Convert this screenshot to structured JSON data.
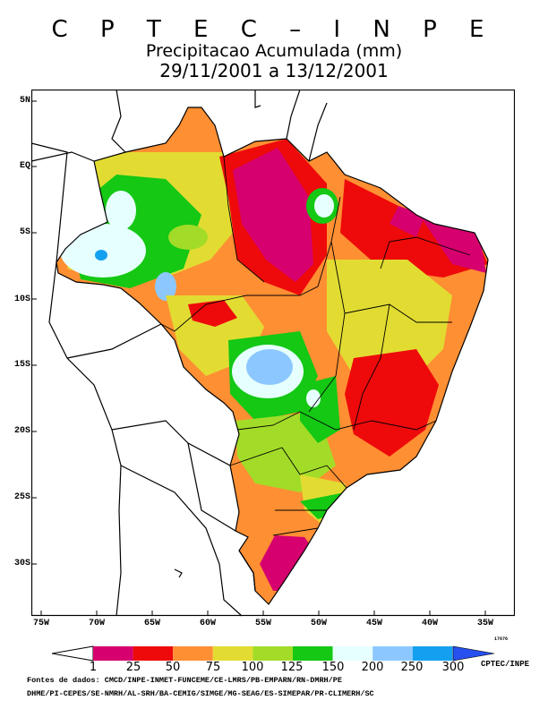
{
  "header": {
    "agency": "C P T E C – I N P E",
    "variable": "Precipitacao Acumulada (mm)",
    "period": "29/11/2001 a 13/12/2001"
  },
  "map": {
    "lat_labels": [
      "5N",
      "EQ",
      "5S",
      "10S",
      "15S",
      "20S",
      "25S",
      "30S"
    ],
    "lon_labels": [
      "75W",
      "70W",
      "65W",
      "60W",
      "55W",
      "50W",
      "45W",
      "40W",
      "35W"
    ],
    "file_id": "17676"
  },
  "legend": {
    "breaks": [
      "1",
      "25",
      "50",
      "75",
      "100",
      "125",
      "150",
      "200",
      "250",
      "300"
    ],
    "colors": [
      "#d6006e",
      "#ee0a0a",
      "#ff8f33",
      "#e2dc32",
      "#a2dc28",
      "#14c814",
      "#e6ffff",
      "#8cc8ff",
      "#14a0f0",
      "#2850f0"
    ],
    "credit": "CPTEC/INPE"
  },
  "sources": {
    "line1": "Fontes de dados: CMCD/INPE-INMET-FUNCEME/CE-LMRS/PB-EMPARN/RN-DMRH/PE",
    "line2": "DHME/PI-CEPES/SE-NMRH/AL-SRH/BA-CEMIG/SIMGE/MG-SEAG/ES-SIMEPAR/PR-CLIMERH/SC"
  }
}
